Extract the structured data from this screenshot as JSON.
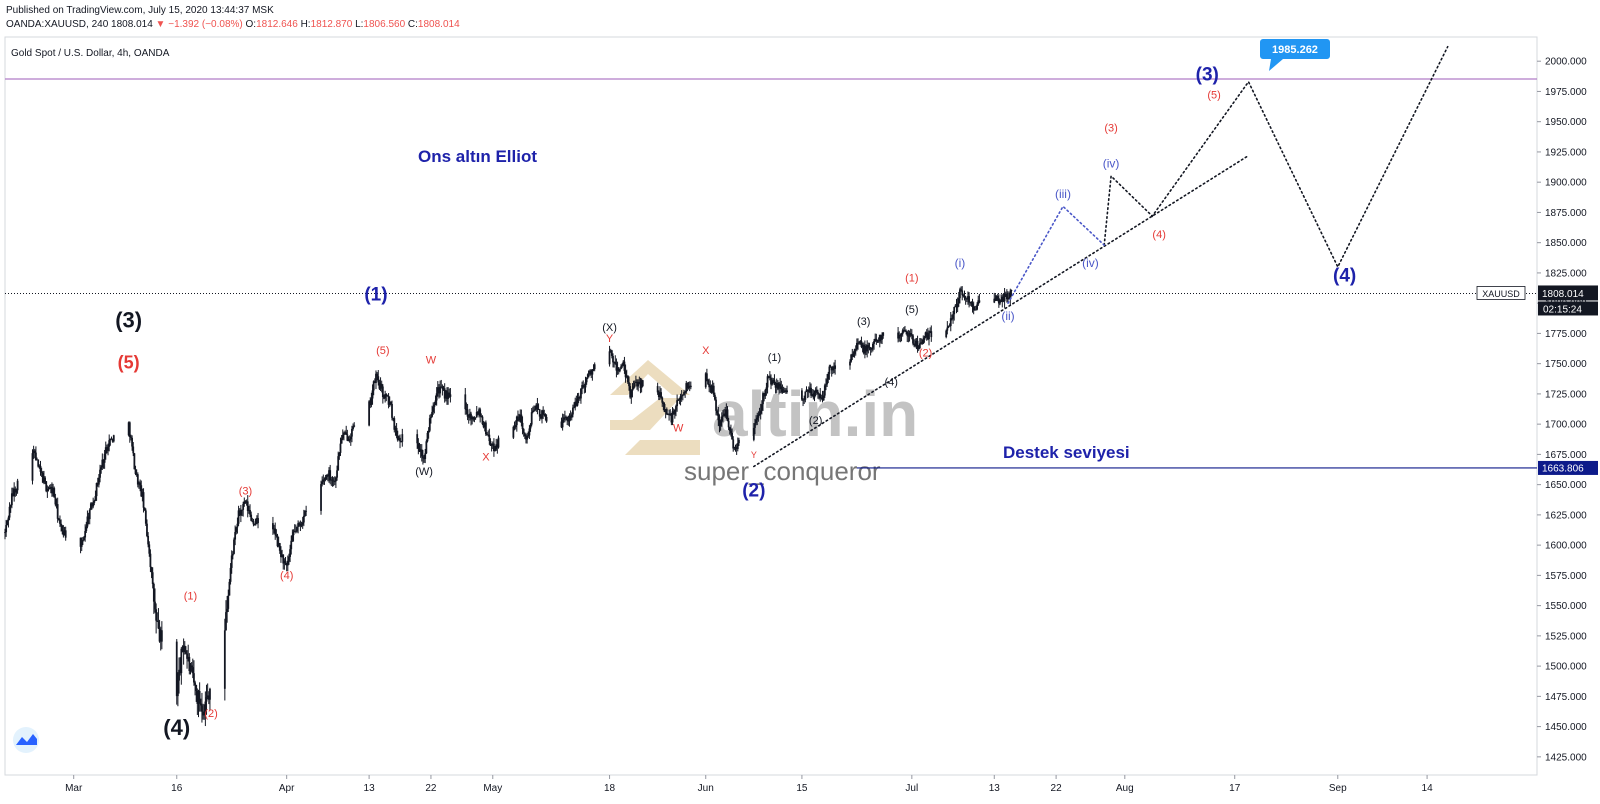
{
  "header": {
    "published": "Published on TradingView.com, July 15, 2020 13:44:37 MSK",
    "symbol": "OANDA:XAUUSD, 240",
    "last": "1808.014",
    "arrow": "▼",
    "change": "−1.392 (−0.08%)",
    "o_label": "O:",
    "o": "1812.646",
    "h_label": "H:",
    "h": "1812.870",
    "l_label": "L:",
    "l": "1806.560",
    "c_label": "C:",
    "c": "1808.014"
  },
  "colors": {
    "bull": "#131722",
    "bear": "#131722",
    "red": "#e53935",
    "blue": "#1e22aa",
    "lavender": "#4a57c8",
    "navy": "#0d1a8a",
    "purple": "#b07cc6",
    "callout": "#2196f3",
    "price_label": "#131722"
  },
  "chart_data": {
    "type": "candlestick",
    "title": "Gold Spot / U.S. Dollar, 4h, OANDA",
    "annotation_title": "Ons altın Elliot",
    "support_text": "Destek seviyesi",
    "watermark_logo": "altin.in",
    "watermark_user": "super_conqueror",
    "ylim": [
      1410,
      2020
    ],
    "y_ticks": [
      "2000.000",
      "1975.000",
      "1950.000",
      "1925.000",
      "1900.000",
      "1875.000",
      "1850.000",
      "1825.000",
      "1800.000",
      "1775.000",
      "1750.000",
      "1725.000",
      "1700.000",
      "1675.000",
      "1650.000",
      "1625.000",
      "1600.000",
      "1575.000",
      "1550.000",
      "1525.000",
      "1500.000",
      "1475.000",
      "1450.000",
      "1425.000"
    ],
    "x_ticks": [
      {
        "d": "2020-03-01",
        "label": "Mar"
      },
      {
        "d": "2020-03-16",
        "label": "16"
      },
      {
        "d": "2020-04-01",
        "label": "Apr"
      },
      {
        "d": "2020-04-13",
        "label": "13"
      },
      {
        "d": "2020-04-22",
        "label": "22"
      },
      {
        "d": "2020-05-01",
        "label": "May"
      },
      {
        "d": "2020-05-18",
        "label": "18"
      },
      {
        "d": "2020-06-01",
        "label": "Jun"
      },
      {
        "d": "2020-06-15",
        "label": "15"
      },
      {
        "d": "2020-07-01",
        "label": "Jul"
      },
      {
        "d": "2020-07-13",
        "label": "13"
      },
      {
        "d": "2020-07-22",
        "label": "22"
      },
      {
        "d": "2020-08-01",
        "label": "Aug"
      },
      {
        "d": "2020-08-17",
        "label": "17"
      },
      {
        "d": "2020-09-01",
        "label": "Sep"
      },
      {
        "d": "2020-09-14",
        "label": "14"
      }
    ],
    "date_range": [
      "2020-02-20",
      "2020-09-30"
    ],
    "price_path": [
      [
        "2020-02-20 00:00",
        1610
      ],
      [
        "2020-02-21 00:00",
        1640
      ],
      [
        "2020-02-24 00:00",
        1680
      ],
      [
        "2020-02-25 00:00",
        1662
      ],
      [
        "2020-02-26 00:00",
        1648
      ],
      [
        "2020-02-27 00:00",
        1645
      ],
      [
        "2020-02-28 00:00",
        1615
      ],
      [
        "2020-03-02 00:00",
        1595
      ],
      [
        "2020-03-03 00:00",
        1622
      ],
      [
        "2020-03-04 00:00",
        1640
      ],
      [
        "2020-03-05 00:00",
        1665
      ],
      [
        "2020-03-06 00:00",
        1685
      ],
      [
        "2020-03-09 00:00",
        1700
      ],
      [
        "2020-03-10 00:00",
        1660
      ],
      [
        "2020-03-11 00:00",
        1640
      ],
      [
        "2020-03-12 00:00",
        1595
      ],
      [
        "2020-03-13 00:00",
        1535
      ],
      [
        "2020-03-16 00:00",
        1480
      ],
      [
        "2020-03-17 00:00",
        1520
      ],
      [
        "2020-03-18 00:00",
        1495
      ],
      [
        "2020-03-19 00:00",
        1475
      ],
      [
        "2020-03-20 00:00",
        1465
      ],
      [
        "2020-03-23 00:00",
        1530
      ],
      [
        "2020-03-24 00:00",
        1590
      ],
      [
        "2020-03-25 00:00",
        1625
      ],
      [
        "2020-03-26 00:00",
        1635
      ],
      [
        "2020-03-27 00:00",
        1620
      ],
      [
        "2020-03-30 00:00",
        1615
      ],
      [
        "2020-03-31 00:00",
        1595
      ],
      [
        "2020-04-01 00:00",
        1580
      ],
      [
        "2020-04-02 00:00",
        1610
      ],
      [
        "2020-04-03 00:00",
        1618
      ],
      [
        "2020-04-06 00:00",
        1650
      ],
      [
        "2020-04-07 00:00",
        1660
      ],
      [
        "2020-04-08 00:00",
        1652
      ],
      [
        "2020-04-09 00:00",
        1690
      ],
      [
        "2020-04-10 00:00",
        1690
      ],
      [
        "2020-04-13 00:00",
        1715
      ],
      [
        "2020-04-14 00:00",
        1740
      ],
      [
        "2020-04-15 00:00",
        1725
      ],
      [
        "2020-04-16 00:00",
        1718
      ],
      [
        "2020-04-17 00:00",
        1690
      ],
      [
        "2020-04-20 00:00",
        1685
      ],
      [
        "2020-04-21 00:00",
        1670
      ],
      [
        "2020-04-22 00:00",
        1710
      ],
      [
        "2020-04-23 00:00",
        1730
      ],
      [
        "2020-04-24 00:00",
        1725
      ],
      [
        "2020-04-27 00:00",
        1712
      ],
      [
        "2020-04-28 00:00",
        1705
      ],
      [
        "2020-04-29 00:00",
        1712
      ],
      [
        "2020-04-30 00:00",
        1695
      ],
      [
        "2020-05-01 00:00",
        1680
      ],
      [
        "2020-05-04 00:00",
        1700
      ],
      [
        "2020-05-05 00:00",
        1705
      ],
      [
        "2020-05-06 00:00",
        1688
      ],
      [
        "2020-05-07 00:00",
        1715
      ],
      [
        "2020-05-08 00:00",
        1708
      ],
      [
        "2020-05-11 00:00",
        1700
      ],
      [
        "2020-05-12 00:00",
        1705
      ],
      [
        "2020-05-13 00:00",
        1715
      ],
      [
        "2020-05-14 00:00",
        1730
      ],
      [
        "2020-05-15 00:00",
        1742
      ],
      [
        "2020-05-18 00:00",
        1760
      ],
      [
        "2020-05-19 00:00",
        1745
      ],
      [
        "2020-05-20 00:00",
        1748
      ],
      [
        "2020-05-21 00:00",
        1725
      ],
      [
        "2020-05-22 00:00",
        1735
      ],
      [
        "2020-05-25 00:00",
        1728
      ],
      [
        "2020-05-26 00:00",
        1712
      ],
      [
        "2020-05-27 00:00",
        1705
      ],
      [
        "2020-05-28 00:00",
        1718
      ],
      [
        "2020-05-29 00:00",
        1730
      ],
      [
        "2020-06-01 00:00",
        1740
      ],
      [
        "2020-06-02 00:00",
        1728
      ],
      [
        "2020-06-03 00:00",
        1700
      ],
      [
        "2020-06-04 00:00",
        1712
      ],
      [
        "2020-06-05 00:00",
        1680
      ],
      [
        "2020-06-08 00:00",
        1698
      ],
      [
        "2020-06-09 00:00",
        1715
      ],
      [
        "2020-06-10 00:00",
        1738
      ],
      [
        "2020-06-11 00:00",
        1732
      ],
      [
        "2020-06-12 00:00",
        1730
      ],
      [
        "2020-06-15 00:00",
        1718
      ],
      [
        "2020-06-16 00:00",
        1728
      ],
      [
        "2020-06-17 00:00",
        1725
      ],
      [
        "2020-06-18 00:00",
        1722
      ],
      [
        "2020-06-19 00:00",
        1745
      ],
      [
        "2020-06-22 00:00",
        1755
      ],
      [
        "2020-06-23 00:00",
        1768
      ],
      [
        "2020-06-24 00:00",
        1762
      ],
      [
        "2020-06-25 00:00",
        1762
      ],
      [
        "2020-06-26 00:00",
        1772
      ],
      [
        "2020-06-29 00:00",
        1772
      ],
      [
        "2020-06-30 00:00",
        1780
      ],
      [
        "2020-07-01 00:00",
        1770
      ],
      [
        "2020-07-02 00:00",
        1765
      ],
      [
        "2020-07-03 00:00",
        1772
      ],
      [
        "2020-07-06 00:00",
        1778
      ],
      [
        "2020-07-07 00:00",
        1792
      ],
      [
        "2020-07-08 00:00",
        1808
      ],
      [
        "2020-07-09 00:00",
        1805
      ],
      [
        "2020-07-10 00:00",
        1798
      ],
      [
        "2020-07-13 00:00",
        1802
      ],
      [
        "2020-07-14 00:00",
        1803
      ],
      [
        "2020-07-15 12:00",
        1808
      ]
    ],
    "candle_interval_hours": 4,
    "current_price": {
      "value": 1808.014,
      "label": "1808.014",
      "symbol": "XAUUSD",
      "countdown": "02:15:24"
    },
    "support_level": {
      "value": 1663.806,
      "label": "1663.806",
      "from": "2020-06-23"
    },
    "target_level": {
      "value": 1985.262,
      "label": "1985.262"
    },
    "trend_lines": [
      {
        "style": "dotted",
        "color": "#131722",
        "from": [
          "2020-06-08 00:00",
          1665
        ],
        "to": [
          "2020-08-19 00:00",
          1922
        ]
      },
      {
        "style": "dotted",
        "color": "#131722",
        "points": [
          [
            "2020-07-29 00:00",
            1848
          ],
          [
            "2020-07-30 00:00",
            1905
          ],
          [
            "2020-08-05 00:00",
            1872
          ],
          [
            "2020-08-19 00:00",
            1983
          ],
          [
            "2020-09-01 00:00",
            1830
          ],
          [
            "2020-09-17 00:00",
            2012
          ]
        ]
      },
      {
        "style": "dotted",
        "color": "#4a57c8",
        "points": [
          [
            "2020-07-15 00:00",
            1800
          ],
          [
            "2020-07-23 00:00",
            1880
          ],
          [
            "2020-07-29 00:00",
            1848
          ]
        ]
      }
    ],
    "wave_labels": [
      {
        "text": "(3)",
        "d": "2020-03-09",
        "y": 1780,
        "color": "black",
        "size": 22
      },
      {
        "text": "(5)",
        "d": "2020-03-09",
        "y": 1746,
        "color": "red",
        "size": 18
      },
      {
        "text": "(4)",
        "d": "2020-03-16",
        "y": 1443,
        "color": "black",
        "size": 22
      },
      {
        "text": "(1)",
        "d": "2020-03-18",
        "y": 1555,
        "color": "red",
        "size": 11
      },
      {
        "text": "(2)",
        "d": "2020-03-21",
        "y": 1458,
        "color": "red",
        "size": 11
      },
      {
        "text": "(3)",
        "d": "2020-03-26",
        "y": 1642,
        "color": "red",
        "size": 11
      },
      {
        "text": "(4)",
        "d": "2020-04-01",
        "y": 1572,
        "color": "red",
        "size": 11
      },
      {
        "text": "(1)",
        "d": "2020-04-14",
        "y": 1802,
        "color": "blue",
        "size": 19
      },
      {
        "text": "(5)",
        "d": "2020-04-15",
        "y": 1758,
        "color": "red",
        "size": 11
      },
      {
        "text": "W",
        "d": "2020-04-22",
        "y": 1750,
        "color": "red",
        "size": 11
      },
      {
        "text": "(W)",
        "d": "2020-04-21",
        "y": 1658,
        "color": "black",
        "size": 11
      },
      {
        "text": "X",
        "d": "2020-04-30",
        "y": 1670,
        "color": "red",
        "size": 11
      },
      {
        "text": "(X)",
        "d": "2020-05-18",
        "y": 1777,
        "color": "black",
        "size": 11
      },
      {
        "text": "Y",
        "d": "2020-05-18",
        "y": 1768,
        "color": "red",
        "size": 11
      },
      {
        "text": "W",
        "d": "2020-05-28",
        "y": 1694,
        "color": "red",
        "size": 11
      },
      {
        "text": "X",
        "d": "2020-06-01",
        "y": 1758,
        "color": "red",
        "size": 11
      },
      {
        "text": "Y",
        "d": "2020-06-08",
        "y": 1672,
        "color": "red",
        "size": 9
      },
      {
        "text": "(2)",
        "d": "2020-06-08",
        "y": 1640,
        "color": "blue",
        "size": 19
      },
      {
        "text": "(1)",
        "d": "2020-06-11",
        "y": 1752,
        "color": "black",
        "size": 11
      },
      {
        "text": "(2)",
        "d": "2020-06-17",
        "y": 1700,
        "color": "black",
        "size": 11
      },
      {
        "text": "(3)",
        "d": "2020-06-24",
        "y": 1782,
        "color": "black",
        "size": 11
      },
      {
        "text": "(4)",
        "d": "2020-06-28",
        "y": 1732,
        "color": "black",
        "size": 11
      },
      {
        "text": "(5)",
        "d": "2020-07-01",
        "y": 1792,
        "color": "black",
        "size": 11
      },
      {
        "text": "(1)",
        "d": "2020-07-01",
        "y": 1818,
        "color": "red",
        "size": 11
      },
      {
        "text": "(2)",
        "d": "2020-07-03",
        "y": 1756,
        "color": "red",
        "size": 11
      },
      {
        "text": "(i)",
        "d": "2020-07-08",
        "y": 1830,
        "color": "lavender",
        "size": 12
      },
      {
        "text": "(ii)",
        "d": "2020-07-15",
        "y": 1786,
        "color": "lavender",
        "size": 12
      },
      {
        "text": "(iii)",
        "d": "2020-07-23",
        "y": 1887,
        "color": "lavender",
        "size": 12
      },
      {
        "text": "(iv)",
        "d": "2020-07-27",
        "y": 1830,
        "color": "lavender",
        "size": 12
      },
      {
        "text": "(iv)",
        "d": "2020-07-30",
        "y": 1912,
        "color": "lavender",
        "size": 12
      },
      {
        "text": "(3)",
        "d": "2020-07-30",
        "y": 1942,
        "color": "red",
        "size": 11
      },
      {
        "text": "(4)",
        "d": "2020-08-06",
        "y": 1854,
        "color": "red",
        "size": 11
      },
      {
        "text": "(5)",
        "d": "2020-08-14",
        "y": 1969,
        "color": "red",
        "size": 11
      },
      {
        "text": "(3)",
        "d": "2020-08-13",
        "y": 1984,
        "color": "blue",
        "size": 19
      },
      {
        "text": "(4)",
        "d": "2020-09-02",
        "y": 1818,
        "color": "blue",
        "size": 19
      }
    ]
  }
}
